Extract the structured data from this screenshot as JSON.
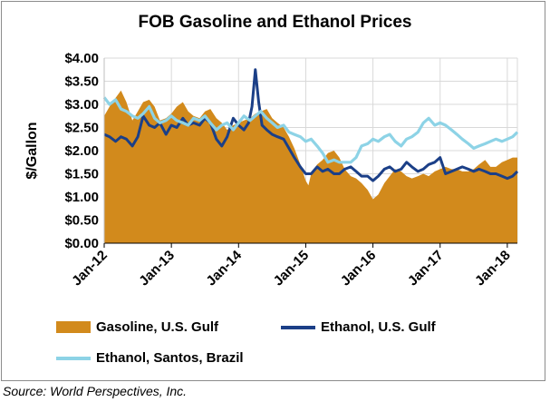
{
  "chart_data": {
    "type": "area+line",
    "title": "FOB Gasoline and Ethanol Prices",
    "ylabel": "$/Gallon",
    "xlabel": "",
    "ylim": [
      0,
      4
    ],
    "y_ticks": [
      "$0.00",
      "$0.50",
      "$1.00",
      "$1.50",
      "$2.00",
      "$2.50",
      "$3.00",
      "$3.50",
      "$4.00"
    ],
    "x_ticks": [
      "Jan-12",
      "Jan-13",
      "Jan-14",
      "Jan-15",
      "Jan-16",
      "Jan-17",
      "Jan-18"
    ],
    "x_range": [
      2012.0,
      2018.15
    ],
    "grid": true,
    "series": [
      {
        "name": "Gasoline, U.S. Gulf",
        "style": "area",
        "color": "#d28a1c",
        "x": [
          2012.0,
          2012.08,
          2012.15,
          2012.25,
          2012.33,
          2012.42,
          2012.5,
          2012.58,
          2012.67,
          2012.75,
          2012.83,
          2012.92,
          2013.0,
          2013.08,
          2013.17,
          2013.25,
          2013.33,
          2013.42,
          2013.5,
          2013.58,
          2013.67,
          2013.75,
          2013.83,
          2013.92,
          2014.0,
          2014.08,
          2014.17,
          2014.25,
          2014.33,
          2014.42,
          2014.5,
          2014.58,
          2014.67,
          2014.75,
          2014.83,
          2014.92,
          2015.0,
          2015.04,
          2015.08,
          2015.17,
          2015.25,
          2015.33,
          2015.42,
          2015.5,
          2015.58,
          2015.67,
          2015.75,
          2015.83,
          2015.92,
          2016.0,
          2016.08,
          2016.17,
          2016.25,
          2016.33,
          2016.42,
          2016.5,
          2016.58,
          2016.67,
          2016.75,
          2016.83,
          2016.92,
          2017.0,
          2017.08,
          2017.17,
          2017.25,
          2017.33,
          2017.42,
          2017.5,
          2017.58,
          2017.67,
          2017.75,
          2017.83,
          2017.92,
          2018.0,
          2018.08,
          2018.15
        ],
        "values": [
          2.75,
          2.95,
          3.1,
          3.3,
          3.05,
          2.65,
          2.85,
          3.05,
          3.1,
          2.95,
          2.65,
          2.7,
          2.8,
          2.95,
          3.05,
          2.85,
          2.75,
          2.7,
          2.85,
          2.9,
          2.7,
          2.6,
          2.45,
          2.55,
          2.6,
          2.65,
          2.7,
          2.8,
          2.85,
          2.9,
          2.7,
          2.6,
          2.5,
          2.3,
          2.05,
          1.7,
          1.35,
          1.25,
          1.5,
          1.7,
          1.8,
          1.95,
          2.0,
          1.85,
          1.6,
          1.45,
          1.4,
          1.3,
          1.15,
          0.95,
          1.05,
          1.3,
          1.45,
          1.6,
          1.55,
          1.45,
          1.4,
          1.45,
          1.5,
          1.45,
          1.55,
          1.6,
          1.65,
          1.6,
          1.6,
          1.55,
          1.55,
          1.6,
          1.7,
          1.8,
          1.65,
          1.65,
          1.75,
          1.8,
          1.85,
          1.85
        ]
      },
      {
        "name": "Ethanol, U.S. Gulf",
        "style": "line",
        "color": "#1b3f87",
        "x": [
          2012.0,
          2012.08,
          2012.17,
          2012.25,
          2012.33,
          2012.42,
          2012.5,
          2012.58,
          2012.67,
          2012.75,
          2012.83,
          2012.92,
          2013.0,
          2013.08,
          2013.17,
          2013.25,
          2013.33,
          2013.42,
          2013.5,
          2013.58,
          2013.67,
          2013.75,
          2013.83,
          2013.92,
          2014.0,
          2014.08,
          2014.15,
          2014.2,
          2014.25,
          2014.3,
          2014.35,
          2014.42,
          2014.5,
          2014.58,
          2014.67,
          2014.75,
          2014.83,
          2014.92,
          2015.0,
          2015.08,
          2015.17,
          2015.25,
          2015.33,
          2015.42,
          2015.5,
          2015.58,
          2015.67,
          2015.75,
          2015.83,
          2015.92,
          2016.0,
          2016.08,
          2016.17,
          2016.25,
          2016.33,
          2016.42,
          2016.5,
          2016.58,
          2016.67,
          2016.75,
          2016.83,
          2016.92,
          2017.0,
          2017.08,
          2017.17,
          2017.25,
          2017.33,
          2017.42,
          2017.5,
          2017.58,
          2017.67,
          2017.75,
          2017.83,
          2017.92,
          2018.0,
          2018.08,
          2018.15
        ],
        "values": [
          2.35,
          2.3,
          2.2,
          2.3,
          2.25,
          2.1,
          2.3,
          2.75,
          2.55,
          2.5,
          2.6,
          2.35,
          2.55,
          2.5,
          2.7,
          2.55,
          2.6,
          2.55,
          2.7,
          2.6,
          2.25,
          2.1,
          2.3,
          2.7,
          2.55,
          2.45,
          2.6,
          2.95,
          3.75,
          3.05,
          2.55,
          2.45,
          2.35,
          2.3,
          2.25,
          2.05,
          1.85,
          1.65,
          1.5,
          1.5,
          1.65,
          1.55,
          1.6,
          1.5,
          1.5,
          1.6,
          1.65,
          1.55,
          1.45,
          1.45,
          1.35,
          1.45,
          1.6,
          1.65,
          1.55,
          1.6,
          1.75,
          1.65,
          1.55,
          1.6,
          1.7,
          1.75,
          1.85,
          1.5,
          1.55,
          1.6,
          1.65,
          1.6,
          1.55,
          1.6,
          1.55,
          1.5,
          1.5,
          1.45,
          1.4,
          1.45,
          1.55
        ]
      },
      {
        "name": "Ethanol, Santos, Brazil",
        "style": "line",
        "color": "#8dd3e6",
        "x": [
          2012.0,
          2012.08,
          2012.17,
          2012.25,
          2012.33,
          2012.42,
          2012.5,
          2012.58,
          2012.67,
          2012.75,
          2012.83,
          2012.92,
          2013.0,
          2013.08,
          2013.17,
          2013.25,
          2013.33,
          2013.42,
          2013.5,
          2013.58,
          2013.67,
          2013.75,
          2013.83,
          2013.92,
          2014.0,
          2014.08,
          2014.17,
          2014.25,
          2014.33,
          2014.42,
          2014.5,
          2014.58,
          2014.67,
          2014.75,
          2014.83,
          2014.92,
          2015.0,
          2015.08,
          2015.17,
          2015.25,
          2015.33,
          2015.42,
          2015.5,
          2015.58,
          2015.67,
          2015.75,
          2015.83,
          2015.92,
          2016.0,
          2016.08,
          2016.17,
          2016.25,
          2016.33,
          2016.42,
          2016.5,
          2016.58,
          2016.67,
          2016.75,
          2016.83,
          2016.92,
          2017.0,
          2017.08,
          2017.17,
          2017.25,
          2017.33,
          2017.42,
          2017.5,
          2017.58,
          2017.67,
          2017.75,
          2017.83,
          2017.92,
          2018.0,
          2018.08,
          2018.15
        ],
        "values": [
          3.15,
          3.0,
          3.1,
          2.9,
          2.85,
          2.75,
          2.7,
          2.8,
          2.95,
          2.7,
          2.6,
          2.65,
          2.75,
          2.65,
          2.6,
          2.55,
          2.7,
          2.65,
          2.75,
          2.6,
          2.45,
          2.55,
          2.6,
          2.45,
          2.6,
          2.75,
          2.65,
          2.75,
          2.85,
          2.7,
          2.6,
          2.5,
          2.55,
          2.4,
          2.35,
          2.3,
          2.2,
          2.25,
          2.1,
          1.95,
          1.75,
          1.8,
          1.75,
          1.75,
          1.75,
          1.85,
          2.1,
          2.15,
          2.25,
          2.2,
          2.3,
          2.35,
          2.2,
          2.1,
          2.25,
          2.3,
          2.4,
          2.6,
          2.7,
          2.55,
          2.6,
          2.55,
          2.45,
          2.35,
          2.25,
          2.15,
          2.05,
          2.1,
          2.15,
          2.2,
          2.25,
          2.2,
          2.25,
          2.3,
          2.4
        ]
      }
    ],
    "legend_position": "bottom"
  },
  "source": "Source: World Perspectives, Inc."
}
